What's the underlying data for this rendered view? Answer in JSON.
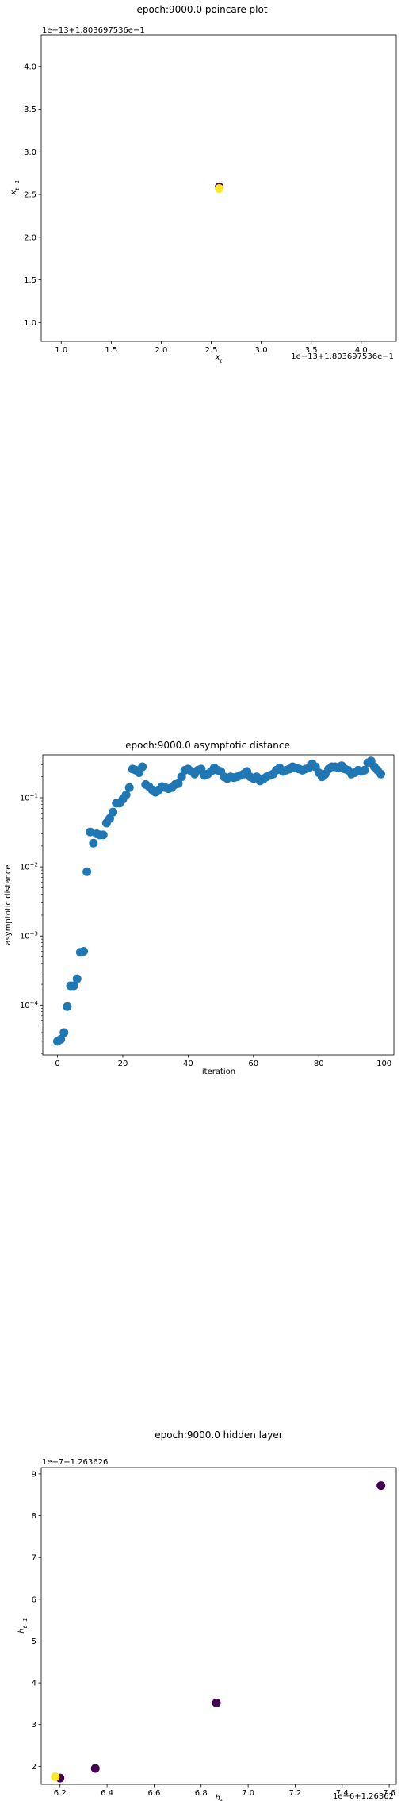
{
  "chart_data": [
    {
      "type": "scatter",
      "title": "epoch:9000.0 poincare plot",
      "xlabel": "x_t",
      "ylabel": "x_{t-1}",
      "x_offset_label": "1e−13+1.803697536e−1",
      "y_offset_label": "1e−13+1.803697536e−1",
      "xlim": [
        0.8,
        4.35
      ],
      "ylim": [
        0.78,
        4.37
      ],
      "xticks": [
        "1.0",
        "1.5",
        "2.0",
        "2.5",
        "3.0",
        "3.5",
        "4.0"
      ],
      "yticks": [
        "1.0",
        "1.5",
        "2.0",
        "2.5",
        "3.0",
        "3.5",
        "4.0"
      ],
      "points": [
        {
          "x": 2.58,
          "y": 2.59,
          "color": "#440154"
        },
        {
          "x": 2.58,
          "y": 2.57,
          "color": "#fde725"
        }
      ]
    },
    {
      "type": "scatter",
      "title": "epoch:9000.0 asymptotic distance",
      "xlabel": "iteration",
      "ylabel": "asymptotic distance",
      "yscale": "log",
      "xlim": [
        -4.5,
        103
      ],
      "ylim_log10": [
        -4.72,
        -0.38
      ],
      "xticks": [
        0,
        20,
        40,
        60,
        80,
        100
      ],
      "yticks": [
        -4,
        -3,
        -2,
        -1
      ],
      "color": "#1f77b4",
      "x": [
        0,
        1,
        2,
        3,
        4,
        5,
        6,
        7,
        8,
        9,
        10,
        11,
        12,
        13,
        14,
        15,
        16,
        17,
        18,
        19,
        20,
        21,
        22,
        23,
        24,
        25,
        26,
        27,
        28,
        29,
        30,
        31,
        32,
        33,
        34,
        35,
        36,
        37,
        38,
        39,
        40,
        41,
        42,
        43,
        44,
        45,
        46,
        47,
        48,
        49,
        50,
        51,
        52,
        53,
        54,
        55,
        56,
        57,
        58,
        59,
        60,
        61,
        62,
        63,
        64,
        65,
        66,
        67,
        68,
        69,
        70,
        71,
        72,
        73,
        74,
        75,
        76,
        77,
        78,
        79,
        80,
        81,
        82,
        83,
        84,
        85,
        86,
        87,
        88,
        89,
        90,
        91,
        92,
        93,
        94,
        95,
        96,
        97,
        98,
        99
      ],
      "y": [
        3e-05,
        3.2e-05,
        4e-05,
        9.5e-05,
        0.00019,
        0.00019,
        0.00024,
        0.00058,
        0.0006,
        0.0085,
        0.032,
        0.022,
        0.03,
        0.029,
        0.029,
        0.043,
        0.05,
        0.062,
        0.083,
        0.083,
        0.095,
        0.11,
        0.14,
        0.26,
        0.25,
        0.23,
        0.28,
        0.155,
        0.145,
        0.13,
        0.12,
        0.13,
        0.145,
        0.14,
        0.135,
        0.14,
        0.155,
        0.16,
        0.2,
        0.25,
        0.26,
        0.24,
        0.22,
        0.25,
        0.26,
        0.21,
        0.22,
        0.24,
        0.27,
        0.25,
        0.24,
        0.2,
        0.19,
        0.2,
        0.195,
        0.2,
        0.21,
        0.22,
        0.24,
        0.2,
        0.19,
        0.2,
        0.175,
        0.185,
        0.2,
        0.21,
        0.22,
        0.25,
        0.27,
        0.24,
        0.25,
        0.26,
        0.28,
        0.27,
        0.26,
        0.25,
        0.26,
        0.27,
        0.31,
        0.28,
        0.23,
        0.2,
        0.22,
        0.26,
        0.28,
        0.28,
        0.27,
        0.29,
        0.26,
        0.25,
        0.22,
        0.23,
        0.25,
        0.24,
        0.25,
        0.32,
        0.34,
        0.28,
        0.25,
        0.22
      ]
    },
    {
      "type": "scatter",
      "title": "epoch:9000.0 hidden layer",
      "xlabel": "h_t",
      "ylabel": "h_{t-1}",
      "x_offset_label": "1e−6+1.26362",
      "y_offset_label": "1e−7+1.263626",
      "xlim": [
        6.12,
        7.63
      ],
      "ylim": [
        1.57,
        9.15
      ],
      "xticks": [
        "6.2",
        "6.4",
        "6.6",
        "6.8",
        "7.0",
        "7.2",
        "7.4",
        "7.6"
      ],
      "yticks": [
        "2",
        "3",
        "4",
        "5",
        "6",
        "7",
        "8",
        "9"
      ],
      "points": [
        {
          "x": 7.565,
          "y": 8.72,
          "color": "#440154"
        },
        {
          "x": 6.865,
          "y": 3.52,
          "color": "#440154"
        },
        {
          "x": 6.35,
          "y": 1.95,
          "color": "#440154"
        },
        {
          "x": 6.2,
          "y": 1.72,
          "color": "#440154"
        },
        {
          "x": 6.18,
          "y": 1.75,
          "color": "#fde725"
        }
      ]
    }
  ]
}
